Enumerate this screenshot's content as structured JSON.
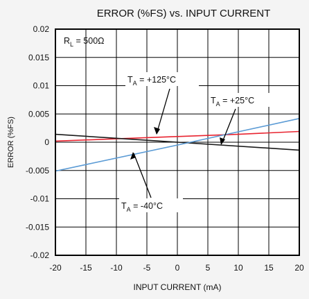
{
  "chart_data": {
    "type": "line",
    "title": "ERROR (%FS) vs. INPUT CURRENT",
    "xlabel": "INPUT CURRENT (mA)",
    "ylabel": "ERROR (%FS)",
    "xlim": [
      -20,
      20
    ],
    "ylim": [
      -0.02,
      0.02
    ],
    "x_ticks": [
      -20,
      -15,
      -10,
      -5,
      0,
      5,
      10,
      15,
      20
    ],
    "y_ticks": [
      0.02,
      0.015,
      0.01,
      0.005,
      0,
      -0.005,
      -0.01,
      -0.015,
      -0.02
    ],
    "x_tick_labels": [
      "-20",
      "-15",
      "-10",
      "-5",
      "0",
      "5",
      "10",
      "15",
      "20"
    ],
    "y_tick_labels": [
      "0.02",
      "0.015",
      "0.01",
      "0.005",
      "0",
      "-0.005",
      "-0.01",
      "-0.015",
      "-0.02"
    ],
    "grid": true,
    "series": [
      {
        "name": "TA = +125°C",
        "color": "#e8232f",
        "x": [
          -20,
          -10,
          0,
          10,
          20
        ],
        "y": [
          0.0002,
          0.0006,
          0.001,
          0.0014,
          0.0019
        ]
      },
      {
        "name": "TA = +25°C",
        "color": "#1a1a1a",
        "x": [
          -20,
          0,
          20
        ],
        "y": [
          0.0014,
          0.0,
          -0.0014
        ]
      },
      {
        "name": "TA = -40°C",
        "color": "#5b9bd5",
        "x": [
          -20,
          0,
          20
        ],
        "y": [
          -0.0051,
          -0.0005,
          0.0042
        ]
      }
    ],
    "annotations": {
      "rl": {
        "main": "R",
        "sub": "L",
        "rest": " = 500Ω"
      },
      "t125": {
        "main": "T",
        "sub": "A",
        "rest": " = +125°C"
      },
      "t25": {
        "main": "T",
        "sub": "A",
        "rest": " = +25°C"
      },
      "tm40": {
        "main": "T",
        "sub": "A",
        "rest": " = -40°C"
      }
    }
  }
}
